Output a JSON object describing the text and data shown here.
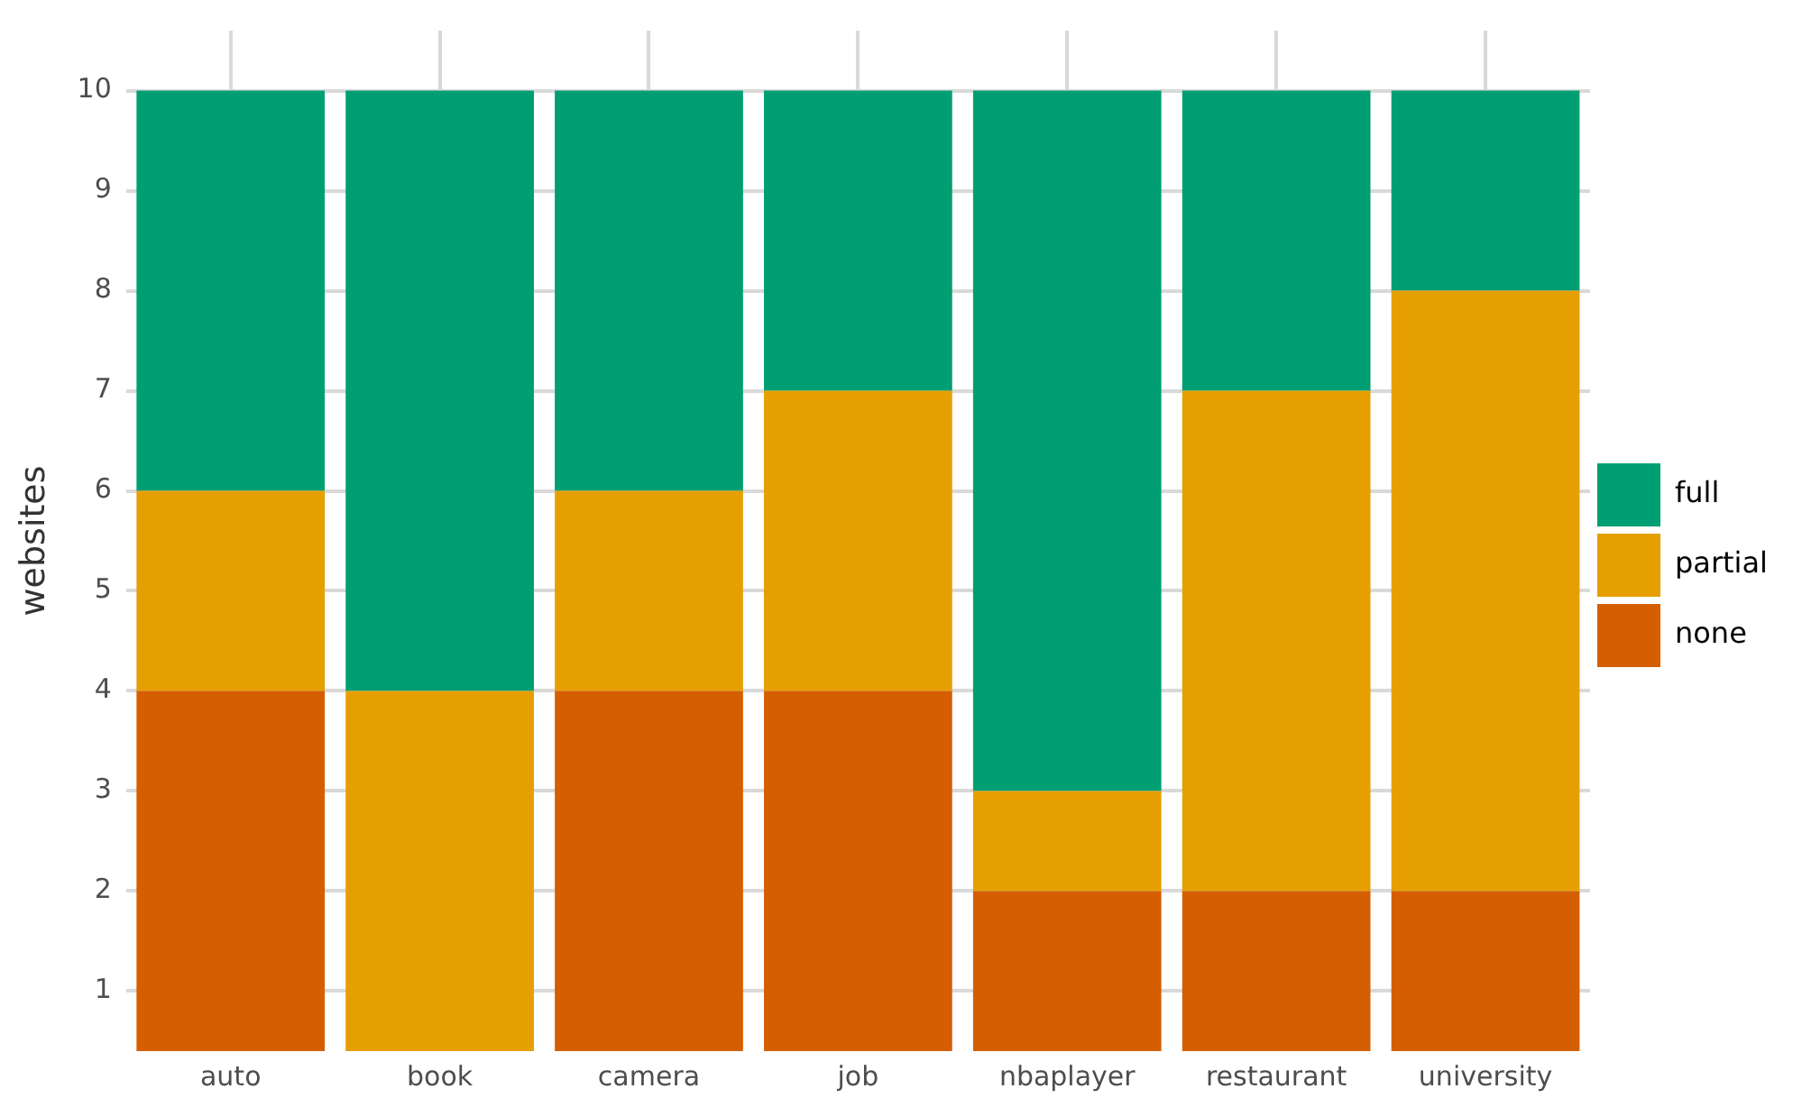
{
  "chart_data": {
    "type": "bar",
    "ylabel": "websites",
    "categories": [
      "auto",
      "book",
      "camera",
      "job",
      "nbaplayer",
      "restaurant",
      "university"
    ],
    "stacked": true,
    "series": [
      {
        "name": "none",
        "color": "#d55e00",
        "values": [
          4,
          null,
          4,
          4,
          2,
          2,
          2
        ]
      },
      {
        "name": "partial",
        "color": "#e69f00",
        "values": [
          2,
          4,
          2,
          3,
          1,
          5,
          6
        ]
      },
      {
        "name": "full",
        "color": "#009e73",
        "values": [
          4,
          6,
          4,
          3,
          7,
          3,
          2
        ]
      }
    ],
    "ylim": [
      0.4,
      10.6
    ],
    "yticks": [
      1,
      2,
      3,
      4,
      5,
      6,
      7,
      8,
      9,
      10
    ],
    "grid": true,
    "legend": "right"
  }
}
